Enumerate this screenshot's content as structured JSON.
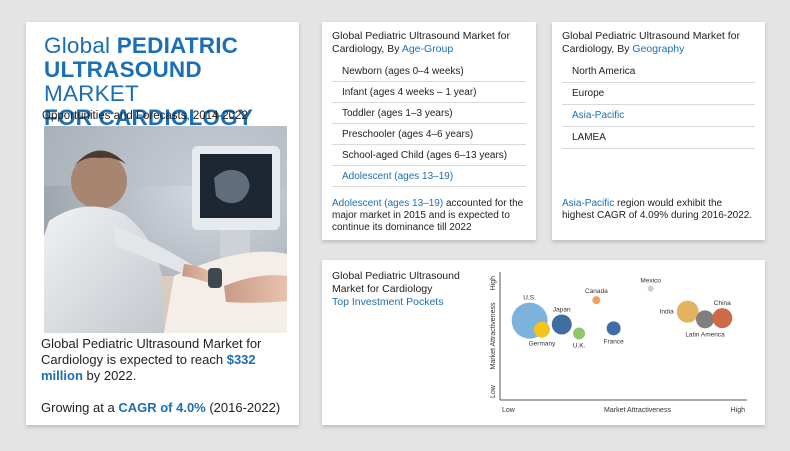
{
  "left": {
    "title_light_1": "Global ",
    "title_bold_1": "PEDIATRIC",
    "title_bold_2": "ULTRASOUND ",
    "title_light_2": "MARKET",
    "title_bold_3": "FOR CARDIOLOGY",
    "subtitle": "Opportunities and Forecasts, 2014-2022",
    "market_prefix": "Global Pediatric Ultrasound Market for Cardiology is expected to reach ",
    "market_value": "$332 million",
    "market_suffix": " by 2022.",
    "cagr_prefix": "Growing at a ",
    "cagr_value": "CAGR of 4.0%",
    "cagr_suffix": " (2016-2022)"
  },
  "age": {
    "title_prefix": "Global Pediatric Ultrasound Market for Cardiology, By ",
    "title_highlight": "Age-Group",
    "items": [
      "Newborn (ages 0–4 weeks)",
      "Infant (ages 4 weeks – 1 year)",
      "Toddler (ages 1–3 years)",
      "Preschooler (ages 4–6 years)",
      "School-aged Child (ages 6–13 years)",
      "Adolescent (ages 13–19)"
    ],
    "note_highlight": "Adolescent (ages 13–19)",
    "note_text": " accounted for the major market in 2015 and is expected to continue its dominance till 2022"
  },
  "geo": {
    "title_prefix": "Global Pediatric Ultrasound Market for Cardiology, By ",
    "title_highlight": "Geography",
    "items": [
      "North America",
      "Europe",
      "Asia-Pacific",
      "LAMEA"
    ],
    "note_highlight": "Asia-Pacific",
    "note_text": " region would exhibit the highest CAGR of 4.09% during 2016-2022."
  },
  "colors": {
    "accent": "#1b6fb5",
    "text": "#222222",
    "background": "#e4e4e4"
  },
  "chart_data": {
    "type": "scatter",
    "title": "Global Pediatric Ultrasound Market for Cardiology",
    "subtitle": "Top Investment Pockets",
    "xlabel": "Market Attractiveness",
    "ylabel": "Market Attractiveness",
    "x_low": "Low",
    "x_high": "High",
    "y_low": "Low",
    "y_high": "High",
    "xlim": [
      0,
      100
    ],
    "ylim": [
      0,
      100
    ],
    "points": [
      {
        "name": "U.S.",
        "x": 12,
        "y": 62,
        "size": 18,
        "color": "#7db2dc"
      },
      {
        "name": "Germany",
        "x": 17,
        "y": 55,
        "size": 8,
        "color": "#f3c51b"
      },
      {
        "name": "Japan",
        "x": 25,
        "y": 59,
        "size": 10,
        "color": "#3f6e9e"
      },
      {
        "name": "U.K.",
        "x": 32,
        "y": 52,
        "size": 6,
        "color": "#8dc86a"
      },
      {
        "name": "Canada",
        "x": 39,
        "y": 78,
        "size": 4,
        "color": "#f4a25b"
      },
      {
        "name": "France",
        "x": 46,
        "y": 56,
        "size": 7,
        "color": "#3d6ea8"
      },
      {
        "name": "Mexico",
        "x": 61,
        "y": 87,
        "size": 3,
        "color": "#cfcfcf"
      },
      {
        "name": "India",
        "x": 76,
        "y": 69,
        "size": 11,
        "color": "#e3b35f"
      },
      {
        "name": "Latin America",
        "x": 83,
        "y": 63,
        "size": 9,
        "color": "#7f7f7f"
      },
      {
        "name": "China",
        "x": 90,
        "y": 64,
        "size": 10,
        "color": "#cc6b46"
      }
    ]
  }
}
